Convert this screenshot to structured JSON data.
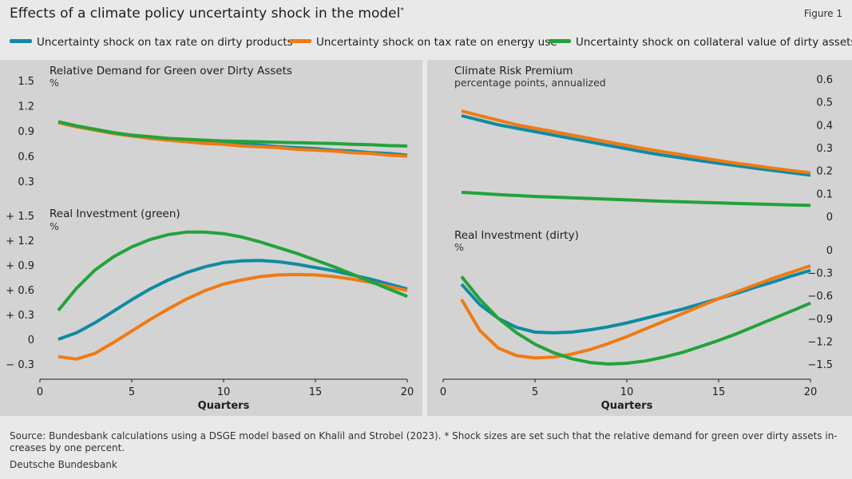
{
  "header": {
    "title": "Effects of a climate policy uncertainty shock in the model",
    "title_mark": "*",
    "figure_label": "Figure 1"
  },
  "colors": {
    "series": [
      "#0f8aa3",
      "#f07a13",
      "#22a33a"
    ],
    "panel_bg": "#d3d3d3",
    "page_bg": "#e9e9e9",
    "text": "#1e1e1e"
  },
  "legend": [
    "Uncertainty shock on tax rate on dirty products",
    "Uncertainty shock on tax rate on energy use",
    "Uncertainty shock on collateral value of dirty assets"
  ],
  "chart_data": [
    {
      "type": "line",
      "title": "Relative Demand for Green over Dirty Assets",
      "unit": "%",
      "axis_side": "left",
      "xlim": [
        0,
        20
      ],
      "ylim": [
        0.3,
        1.5
      ],
      "yticks": [
        "1.5",
        "1.2",
        "0.9",
        "0.6",
        "0.3"
      ],
      "series": [
        {
          "name": "Uncertainty shock on tax rate on dirty products",
          "x": [
            1,
            2,
            3,
            4,
            5,
            6,
            7,
            8,
            9,
            10,
            11,
            12,
            13,
            14,
            15,
            16,
            17,
            18,
            19,
            20
          ],
          "values": [
            1.0,
            0.95,
            0.91,
            0.87,
            0.84,
            0.82,
            0.8,
            0.78,
            0.76,
            0.75,
            0.74,
            0.73,
            0.71,
            0.7,
            0.69,
            0.67,
            0.66,
            0.64,
            0.63,
            0.61
          ]
        },
        {
          "name": "Uncertainty shock on tax rate on energy use",
          "x": [
            1,
            2,
            3,
            4,
            5,
            6,
            7,
            8,
            9,
            10,
            11,
            12,
            13,
            14,
            15,
            16,
            17,
            18,
            19,
            20
          ],
          "values": [
            1.0,
            0.95,
            0.91,
            0.87,
            0.84,
            0.81,
            0.79,
            0.77,
            0.75,
            0.74,
            0.72,
            0.71,
            0.7,
            0.68,
            0.67,
            0.66,
            0.64,
            0.63,
            0.61,
            0.6
          ]
        },
        {
          "name": "Uncertainty shock on collateral value of dirty assets",
          "x": [
            1,
            2,
            3,
            4,
            5,
            6,
            7,
            8,
            9,
            10,
            11,
            12,
            13,
            14,
            15,
            16,
            17,
            18,
            19,
            20
          ],
          "values": [
            1.01,
            0.96,
            0.92,
            0.88,
            0.85,
            0.83,
            0.81,
            0.8,
            0.79,
            0.78,
            0.775,
            0.77,
            0.765,
            0.76,
            0.755,
            0.75,
            0.74,
            0.735,
            0.725,
            0.72
          ]
        }
      ]
    },
    {
      "type": "line",
      "title": "Real Investment (green)",
      "unit": "%",
      "axis_side": "left",
      "xlabel": "Quarters",
      "xlim": [
        0,
        20
      ],
      "xticks": [
        "0",
        "5",
        "10",
        "15",
        "20"
      ],
      "ylim": [
        -0.3,
        1.5
      ],
      "yticks": [
        "+ 1.5",
        "+ 1.2",
        "+ 0.9",
        "+ 0.6",
        "+ 0.3",
        "0",
        "− 0.3"
      ],
      "series": [
        {
          "name": "Uncertainty shock on tax rate on dirty products",
          "x": [
            1,
            2,
            3,
            4,
            5,
            6,
            7,
            8,
            9,
            10,
            11,
            12,
            13,
            14,
            15,
            16,
            17,
            18,
            19,
            20
          ],
          "values": [
            0.0,
            0.08,
            0.2,
            0.34,
            0.48,
            0.61,
            0.72,
            0.81,
            0.88,
            0.93,
            0.95,
            0.955,
            0.94,
            0.91,
            0.87,
            0.83,
            0.78,
            0.73,
            0.67,
            0.61
          ]
        },
        {
          "name": "Uncertainty shock on tax rate on energy use",
          "x": [
            1,
            2,
            3,
            4,
            5,
            6,
            7,
            8,
            9,
            10,
            11,
            12,
            13,
            14,
            15,
            16,
            17,
            18,
            19,
            20
          ],
          "values": [
            -0.21,
            -0.24,
            -0.17,
            -0.04,
            0.1,
            0.24,
            0.37,
            0.49,
            0.59,
            0.67,
            0.72,
            0.76,
            0.78,
            0.785,
            0.78,
            0.76,
            0.73,
            0.69,
            0.64,
            0.59
          ]
        },
        {
          "name": "Uncertainty shock on collateral value of dirty assets",
          "x": [
            1,
            2,
            3,
            4,
            5,
            6,
            7,
            8,
            9,
            10,
            11,
            12,
            13,
            14,
            15,
            16,
            17,
            18,
            19,
            20
          ],
          "values": [
            0.35,
            0.62,
            0.84,
            1.0,
            1.12,
            1.21,
            1.27,
            1.3,
            1.3,
            1.28,
            1.24,
            1.18,
            1.11,
            1.04,
            0.96,
            0.88,
            0.79,
            0.7,
            0.61,
            0.52
          ]
        }
      ]
    },
    {
      "type": "line",
      "title": "Climate Risk Premium",
      "subtitle": "percentage points, annualized",
      "axis_side": "right",
      "xlim": [
        0,
        20
      ],
      "ylim": [
        0,
        0.6
      ],
      "yticks": [
        "0.6",
        "0.5",
        "0.4",
        "0.3",
        "0.2",
        "0.1",
        "0"
      ],
      "series": [
        {
          "name": "Uncertainty shock on tax rate on dirty products",
          "x": [
            1,
            2,
            3,
            4,
            5,
            6,
            7,
            8,
            9,
            10,
            11,
            12,
            13,
            14,
            15,
            16,
            17,
            18,
            19,
            20
          ],
          "values": [
            0.44,
            0.42,
            0.4,
            0.385,
            0.37,
            0.355,
            0.34,
            0.325,
            0.31,
            0.295,
            0.28,
            0.267,
            0.255,
            0.243,
            0.232,
            0.221,
            0.21,
            0.2,
            0.19,
            0.18
          ]
        },
        {
          "name": "Uncertainty shock on tax rate on energy use",
          "x": [
            1,
            2,
            3,
            4,
            5,
            6,
            7,
            8,
            9,
            10,
            11,
            12,
            13,
            14,
            15,
            16,
            17,
            18,
            19,
            20
          ],
          "values": [
            0.46,
            0.44,
            0.42,
            0.4,
            0.385,
            0.37,
            0.355,
            0.34,
            0.325,
            0.31,
            0.295,
            0.282,
            0.269,
            0.256,
            0.244,
            0.232,
            0.221,
            0.21,
            0.2,
            0.19
          ]
        },
        {
          "name": "Uncertainty shock on collateral value of dirty assets",
          "x": [
            1,
            2,
            3,
            4,
            5,
            6,
            7,
            8,
            9,
            10,
            11,
            12,
            13,
            14,
            15,
            16,
            17,
            18,
            19,
            20
          ],
          "values": [
            0.105,
            0.1,
            0.095,
            0.091,
            0.087,
            0.084,
            0.081,
            0.078,
            0.075,
            0.072,
            0.069,
            0.066,
            0.064,
            0.061,
            0.059,
            0.056,
            0.054,
            0.052,
            0.05,
            0.048
          ]
        }
      ]
    },
    {
      "type": "line",
      "title": "Real Investment (dirty)",
      "unit": "%",
      "axis_side": "right",
      "xlabel": "Quarters",
      "xlim": [
        0,
        20
      ],
      "xticks": [
        "0",
        "5",
        "10",
        "15",
        "20"
      ],
      "ylim": [
        -1.5,
        0
      ],
      "yticks": [
        "0",
        "−0.3",
        "−0.6",
        "−0.9",
        "−1.2",
        "−1.5"
      ],
      "series": [
        {
          "name": "Uncertainty shock on tax rate on dirty products",
          "x": [
            1,
            2,
            3,
            4,
            5,
            6,
            7,
            8,
            9,
            10,
            11,
            12,
            13,
            14,
            15,
            16,
            17,
            18,
            19,
            20
          ],
          "values": [
            -0.45,
            -0.72,
            -0.9,
            -1.02,
            -1.08,
            -1.09,
            -1.08,
            -1.05,
            -1.01,
            -0.96,
            -0.9,
            -0.84,
            -0.78,
            -0.71,
            -0.64,
            -0.57,
            -0.49,
            -0.42,
            -0.34,
            -0.27
          ]
        },
        {
          "name": "Uncertainty shock on tax rate on energy use",
          "x": [
            1,
            2,
            3,
            4,
            5,
            6,
            7,
            8,
            9,
            10,
            11,
            12,
            13,
            14,
            15,
            16,
            17,
            18,
            19,
            20
          ],
          "values": [
            -0.65,
            -1.06,
            -1.29,
            -1.39,
            -1.42,
            -1.41,
            -1.37,
            -1.31,
            -1.23,
            -1.14,
            -1.04,
            -0.94,
            -0.84,
            -0.74,
            -0.64,
            -0.55,
            -0.46,
            -0.37,
            -0.29,
            -0.21
          ]
        },
        {
          "name": "Uncertainty shock on collateral value of dirty assets",
          "x": [
            1,
            2,
            3,
            4,
            5,
            6,
            7,
            8,
            9,
            10,
            11,
            12,
            13,
            14,
            15,
            16,
            17,
            18,
            19,
            20
          ],
          "values": [
            -0.35,
            -0.65,
            -0.9,
            -1.09,
            -1.24,
            -1.35,
            -1.43,
            -1.48,
            -1.5,
            -1.49,
            -1.46,
            -1.41,
            -1.35,
            -1.27,
            -1.19,
            -1.1,
            -1.0,
            -0.9,
            -0.8,
            -0.7
          ]
        }
      ]
    }
  ],
  "footer": {
    "source": "Source: Bundesbank calculations using a DSGE model based on Khalil and Strobel (2023). * Shock sizes are set such that the relative demand for green over dirty assets in-creases by one percent.",
    "publisher": "Deutsche Bundesbank"
  }
}
